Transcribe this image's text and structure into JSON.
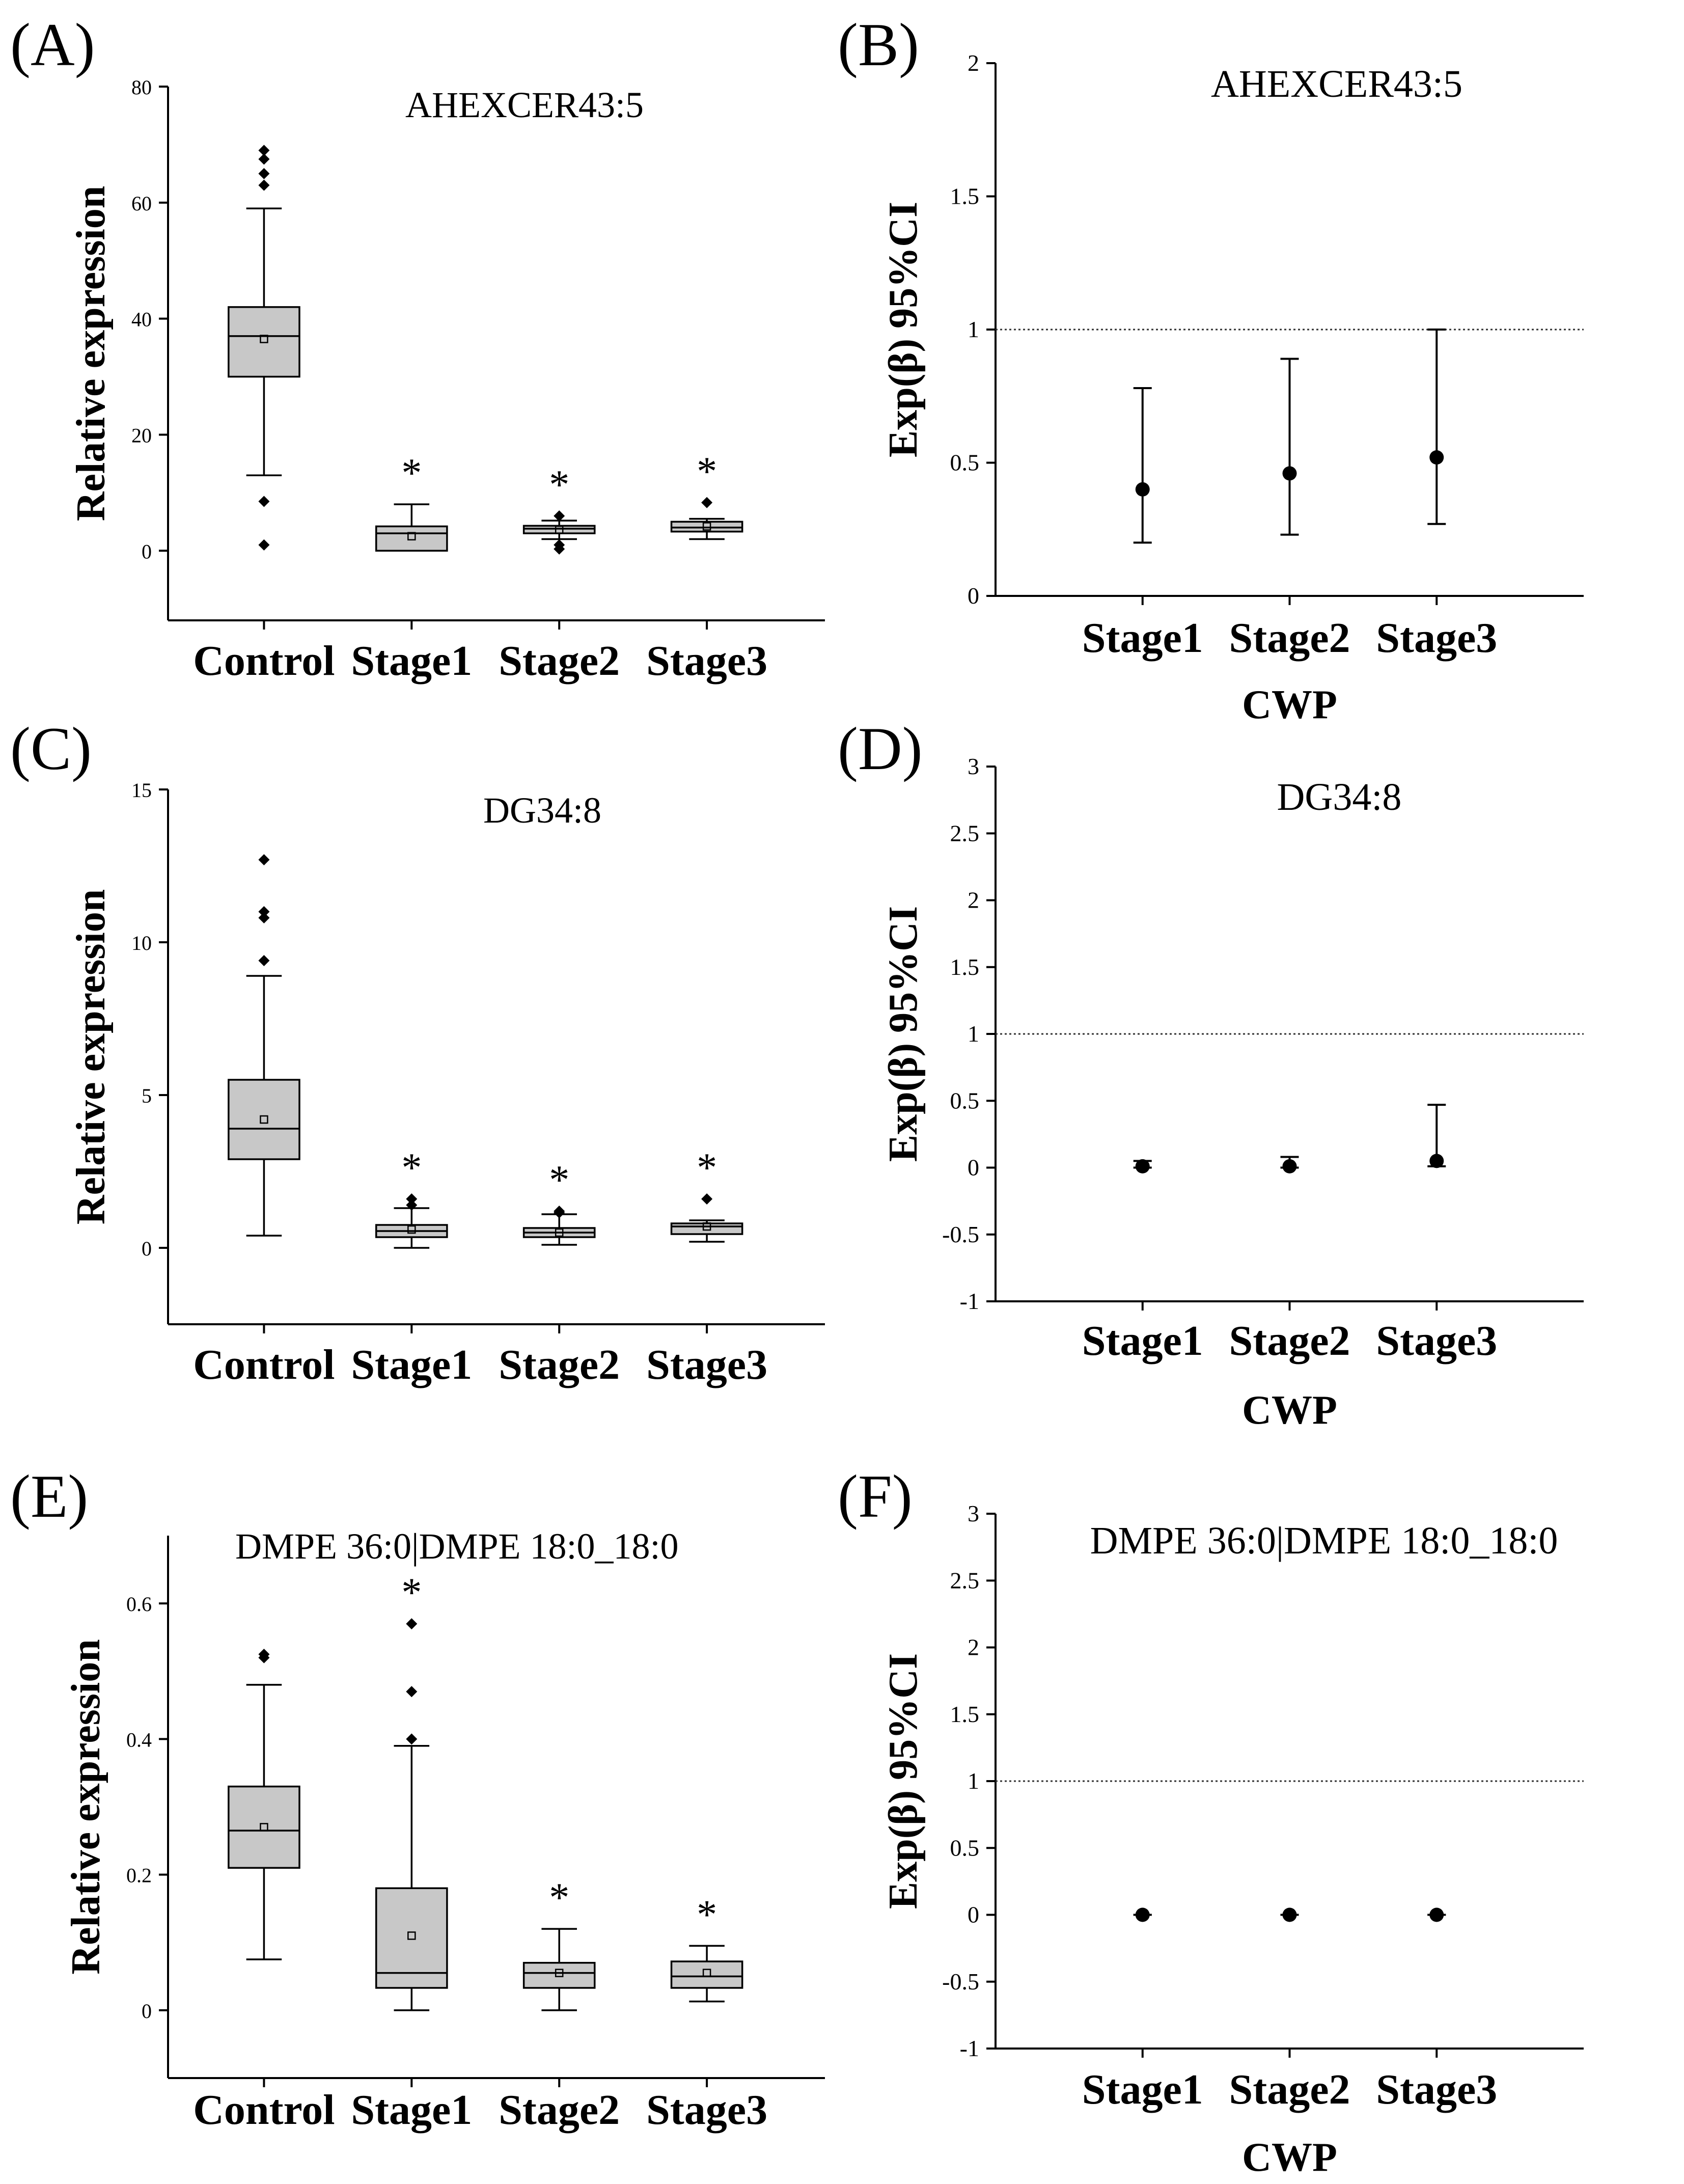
{
  "figure": {
    "panels": [
      {
        "label": "(A)"
      },
      {
        "label": "(B)"
      },
      {
        "label": "(C)"
      },
      {
        "label": "(D)"
      },
      {
        "label": "(E)"
      },
      {
        "label": "(F)"
      }
    ],
    "colors": {
      "box_fill": "#c8c8c8",
      "stroke": "#000000",
      "reference_line": "#333333"
    }
  },
  "chart_data": [
    {
      "panel": "(A)",
      "type": "box",
      "title": "AHEXCER43:5",
      "ylabel": "Relative expression",
      "xlabel": "",
      "ylim": [
        -12,
        80
      ],
      "yticks": [
        0,
        20,
        40,
        60,
        80
      ],
      "categories": [
        "Control",
        "Stage1",
        "Stage2",
        "Stage3"
      ],
      "significance_marker": "*",
      "boxes": [
        {
          "category": "Control",
          "whisker_low": 13,
          "q1": 30,
          "median": 37,
          "q3": 42,
          "whisker_high": 59,
          "mean": 36.5,
          "outliers": [
            1,
            8.5,
            63,
            65,
            67.5,
            69
          ],
          "significant": false
        },
        {
          "category": "Stage1",
          "whisker_low": 0,
          "q1": 0,
          "median": 3,
          "q3": 4.2,
          "whisker_high": 8,
          "mean": 2.5,
          "outliers": [],
          "significant": true
        },
        {
          "category": "Stage2",
          "whisker_low": 2,
          "q1": 3,
          "median": 3.8,
          "q3": 4.3,
          "whisker_high": 5.2,
          "mean": 3.6,
          "outliers": [
            0.3,
            1,
            6
          ],
          "significant": true
        },
        {
          "category": "Stage3",
          "whisker_low": 2,
          "q1": 3.3,
          "median": 4,
          "q3": 5,
          "whisker_high": 5.5,
          "mean": 4.2,
          "outliers": [
            8.3
          ],
          "significant": true
        }
      ]
    },
    {
      "panel": "(B)",
      "type": "errorbar",
      "title": "AHEXCER43:5",
      "ylabel": "Exp(β) 95%CI",
      "xlabel": "CWP",
      "ylim": [
        0,
        2
      ],
      "yticks": [
        0,
        0.5,
        1,
        1.5,
        2
      ],
      "ytick_labels": [
        "0",
        "0.5",
        "1",
        "1.5",
        "2"
      ],
      "reference_line": 1,
      "categories": [
        "Stage1",
        "Stage2",
        "Stage3"
      ],
      "points": [
        {
          "category": "Stage1",
          "estimate": 0.4,
          "lower": 0.2,
          "upper": 0.78
        },
        {
          "category": "Stage2",
          "estimate": 0.46,
          "lower": 0.23,
          "upper": 0.89
        },
        {
          "category": "Stage3",
          "estimate": 0.52,
          "lower": 0.27,
          "upper": 1.0
        }
      ]
    },
    {
      "panel": "(C)",
      "type": "box",
      "title": "DG34:8",
      "ylabel": "Relative expression",
      "xlabel": "",
      "ylim": [
        -2.5,
        15
      ],
      "yticks": [
        0,
        5,
        10,
        15
      ],
      "categories": [
        "Control",
        "Stage1",
        "Stage2",
        "Stage3"
      ],
      "significance_marker": "*",
      "boxes": [
        {
          "category": "Control",
          "whisker_low": 0.4,
          "q1": 2.9,
          "median": 3.9,
          "q3": 5.5,
          "whisker_high": 8.9,
          "mean": 4.2,
          "outliers": [
            9.4,
            10.8,
            11,
            12.7
          ],
          "significant": false
        },
        {
          "category": "Stage1",
          "whisker_low": 0,
          "q1": 0.35,
          "median": 0.55,
          "q3": 0.75,
          "whisker_high": 1.3,
          "mean": 0.6,
          "outliers": [
            1.4,
            1.6
          ],
          "significant": true
        },
        {
          "category": "Stage2",
          "whisker_low": 0.1,
          "q1": 0.35,
          "median": 0.5,
          "q3": 0.65,
          "whisker_high": 1.1,
          "mean": 0.5,
          "outliers": [
            1.15,
            1.2
          ],
          "significant": true
        },
        {
          "category": "Stage3",
          "whisker_low": 0.2,
          "q1": 0.45,
          "median": 0.7,
          "q3": 0.8,
          "whisker_high": 0.9,
          "mean": 0.7,
          "outliers": [
            1.6
          ],
          "significant": true
        }
      ]
    },
    {
      "panel": "(D)",
      "type": "errorbar",
      "title": "DG34:8",
      "ylabel": "Exp(β) 95%CI",
      "xlabel": "CWP",
      "ylim": [
        -1,
        3
      ],
      "yticks": [
        -1,
        -0.5,
        0,
        0.5,
        1,
        1.5,
        2,
        2.5,
        3
      ],
      "ytick_labels": [
        "-1",
        "-0.5",
        "0",
        "0.5",
        "1",
        "1.5",
        "2",
        "2.5",
        "3"
      ],
      "reference_line": 1,
      "categories": [
        "Stage1",
        "Stage2",
        "Stage3"
      ],
      "points": [
        {
          "category": "Stage1",
          "estimate": 0.01,
          "lower": 0.0,
          "upper": 0.05
        },
        {
          "category": "Stage2",
          "estimate": 0.01,
          "lower": 0.0,
          "upper": 0.08
        },
        {
          "category": "Stage3",
          "estimate": 0.05,
          "lower": 0.01,
          "upper": 0.47
        }
      ]
    },
    {
      "panel": "(E)",
      "type": "box",
      "title": "DMPE 36:0|DMPE 18:0_18:0",
      "ylabel": "Relative expression",
      "xlabel": "",
      "ylim": [
        -0.1,
        0.7
      ],
      "yticks": [
        0,
        0.2,
        0.4,
        0.6
      ],
      "ytick_labels": [
        "0",
        "0.2",
        "0.4",
        "0.6"
      ],
      "categories": [
        "Control",
        "Stage1",
        "Stage2",
        "Stage3"
      ],
      "significance_marker": "*",
      "boxes": [
        {
          "category": "Control",
          "whisker_low": 0.075,
          "q1": 0.21,
          "median": 0.265,
          "q3": 0.33,
          "whisker_high": 0.48,
          "mean": 0.27,
          "outliers": [
            0.52,
            0.525
          ],
          "significant": false
        },
        {
          "category": "Stage1",
          "whisker_low": 0,
          "q1": 0.033,
          "median": 0.055,
          "q3": 0.18,
          "whisker_high": 0.39,
          "mean": 0.11,
          "outliers": [
            0.4,
            0.47,
            0.57
          ],
          "significant": true
        },
        {
          "category": "Stage2",
          "whisker_low": 0,
          "q1": 0.033,
          "median": 0.055,
          "q3": 0.07,
          "whisker_high": 0.12,
          "mean": 0.055,
          "outliers": [],
          "significant": true
        },
        {
          "category": "Stage3",
          "whisker_low": 0.013,
          "q1": 0.033,
          "median": 0.05,
          "q3": 0.072,
          "whisker_high": 0.095,
          "mean": 0.055,
          "outliers": [],
          "significant": true
        }
      ]
    },
    {
      "panel": "(F)",
      "type": "errorbar",
      "title": "DMPE 36:0|DMPE 18:0_18:0",
      "ylabel": "Exp(β) 95%CI",
      "xlabel": "CWP",
      "ylim": [
        -1,
        3
      ],
      "yticks": [
        -1,
        -0.5,
        0,
        0.5,
        1,
        1.5,
        2,
        2.5,
        3
      ],
      "ytick_labels": [
        "-1",
        "-0.5",
        "0",
        "0.5",
        "1",
        "1.5",
        "2",
        "2.5",
        "3"
      ],
      "reference_line": 1,
      "categories": [
        "Stage1",
        "Stage2",
        "Stage3"
      ],
      "points": [
        {
          "category": "Stage1",
          "estimate": 0.0,
          "lower": 0.0,
          "upper": 0.0
        },
        {
          "category": "Stage2",
          "estimate": 0.0,
          "lower": 0.0,
          "upper": 0.0
        },
        {
          "category": "Stage3",
          "estimate": 0.0,
          "lower": 0.0,
          "upper": 0.0
        }
      ]
    }
  ]
}
